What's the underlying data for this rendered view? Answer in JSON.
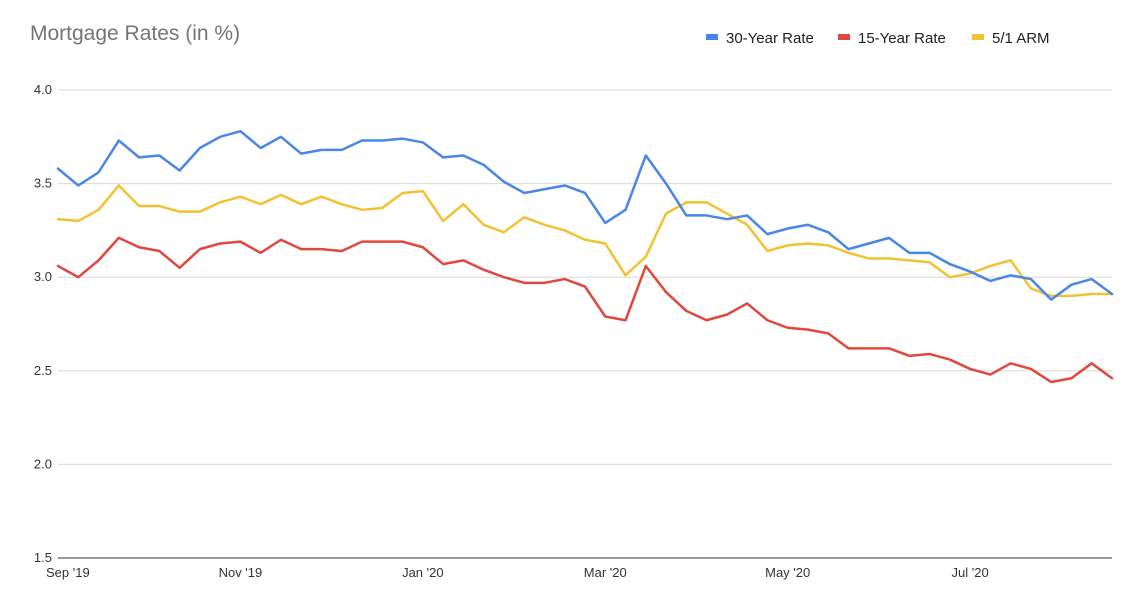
{
  "chart_data": {
    "type": "line",
    "title": "Mortgage Rates (in %)",
    "xlabel": "",
    "ylabel": "",
    "ylim": [
      1.5,
      4.0
    ],
    "yticks": [
      "4.0",
      "3.5",
      "3.0",
      "2.5",
      "2.0",
      "1.5"
    ],
    "xticks": [
      {
        "label": "Sep '19",
        "index": 0
      },
      {
        "label": "Nov '19",
        "index": 9
      },
      {
        "label": "Jan '20",
        "index": 18
      },
      {
        "label": "Mar '20",
        "index": 27
      },
      {
        "label": "May '20",
        "index": 36
      },
      {
        "label": "Jul '20",
        "index": 45
      }
    ],
    "grid": true,
    "legend_position": "top-right",
    "series": [
      {
        "name": "30-Year Rate",
        "color": "#4a86e8",
        "values": [
          3.58,
          3.49,
          3.56,
          3.73,
          3.64,
          3.65,
          3.57,
          3.69,
          3.75,
          3.78,
          3.69,
          3.75,
          3.66,
          3.68,
          3.68,
          3.73,
          3.73,
          3.74,
          3.72,
          3.64,
          3.65,
          3.6,
          3.51,
          3.45,
          3.47,
          3.49,
          3.45,
          3.29,
          3.36,
          3.65,
          3.5,
          3.33,
          3.33,
          3.31,
          3.33,
          3.23,
          3.26,
          3.28,
          3.24,
          3.15,
          3.18,
          3.21,
          3.13,
          3.13,
          3.07,
          3.03,
          2.98,
          3.01,
          2.99,
          2.88,
          2.96,
          2.99,
          2.91
        ]
      },
      {
        "name": "15-Year Rate",
        "color": "#e0483e",
        "values": [
          3.06,
          3.0,
          3.09,
          3.21,
          3.16,
          3.14,
          3.05,
          3.15,
          3.18,
          3.19,
          3.13,
          3.2,
          3.15,
          3.15,
          3.14,
          3.19,
          3.19,
          3.19,
          3.16,
          3.07,
          3.09,
          3.04,
          3.0,
          2.97,
          2.97,
          2.99,
          2.95,
          2.79,
          2.77,
          3.06,
          2.92,
          2.82,
          2.77,
          2.8,
          2.86,
          2.77,
          2.73,
          2.72,
          2.7,
          2.62,
          2.62,
          2.62,
          2.58,
          2.59,
          2.56,
          2.51,
          2.48,
          2.54,
          2.51,
          2.44,
          2.46,
          2.54,
          2.46
        ]
      },
      {
        "name": "5/1 ARM",
        "color": "#f1c232",
        "values": [
          3.31,
          3.3,
          3.36,
          3.49,
          3.38,
          3.38,
          3.35,
          3.35,
          3.4,
          3.43,
          3.39,
          3.44,
          3.39,
          3.43,
          3.39,
          3.36,
          3.37,
          3.45,
          3.46,
          3.3,
          3.39,
          3.28,
          3.24,
          3.32,
          3.28,
          3.25,
          3.2,
          3.18,
          3.01,
          3.11,
          3.34,
          3.4,
          3.4,
          3.34,
          3.28,
          3.14,
          3.17,
          3.18,
          3.17,
          3.13,
          3.1,
          3.1,
          3.09,
          3.08,
          3.0,
          3.02,
          3.06,
          3.09,
          2.94,
          2.9,
          2.9,
          2.91,
          2.91
        ]
      }
    ]
  }
}
